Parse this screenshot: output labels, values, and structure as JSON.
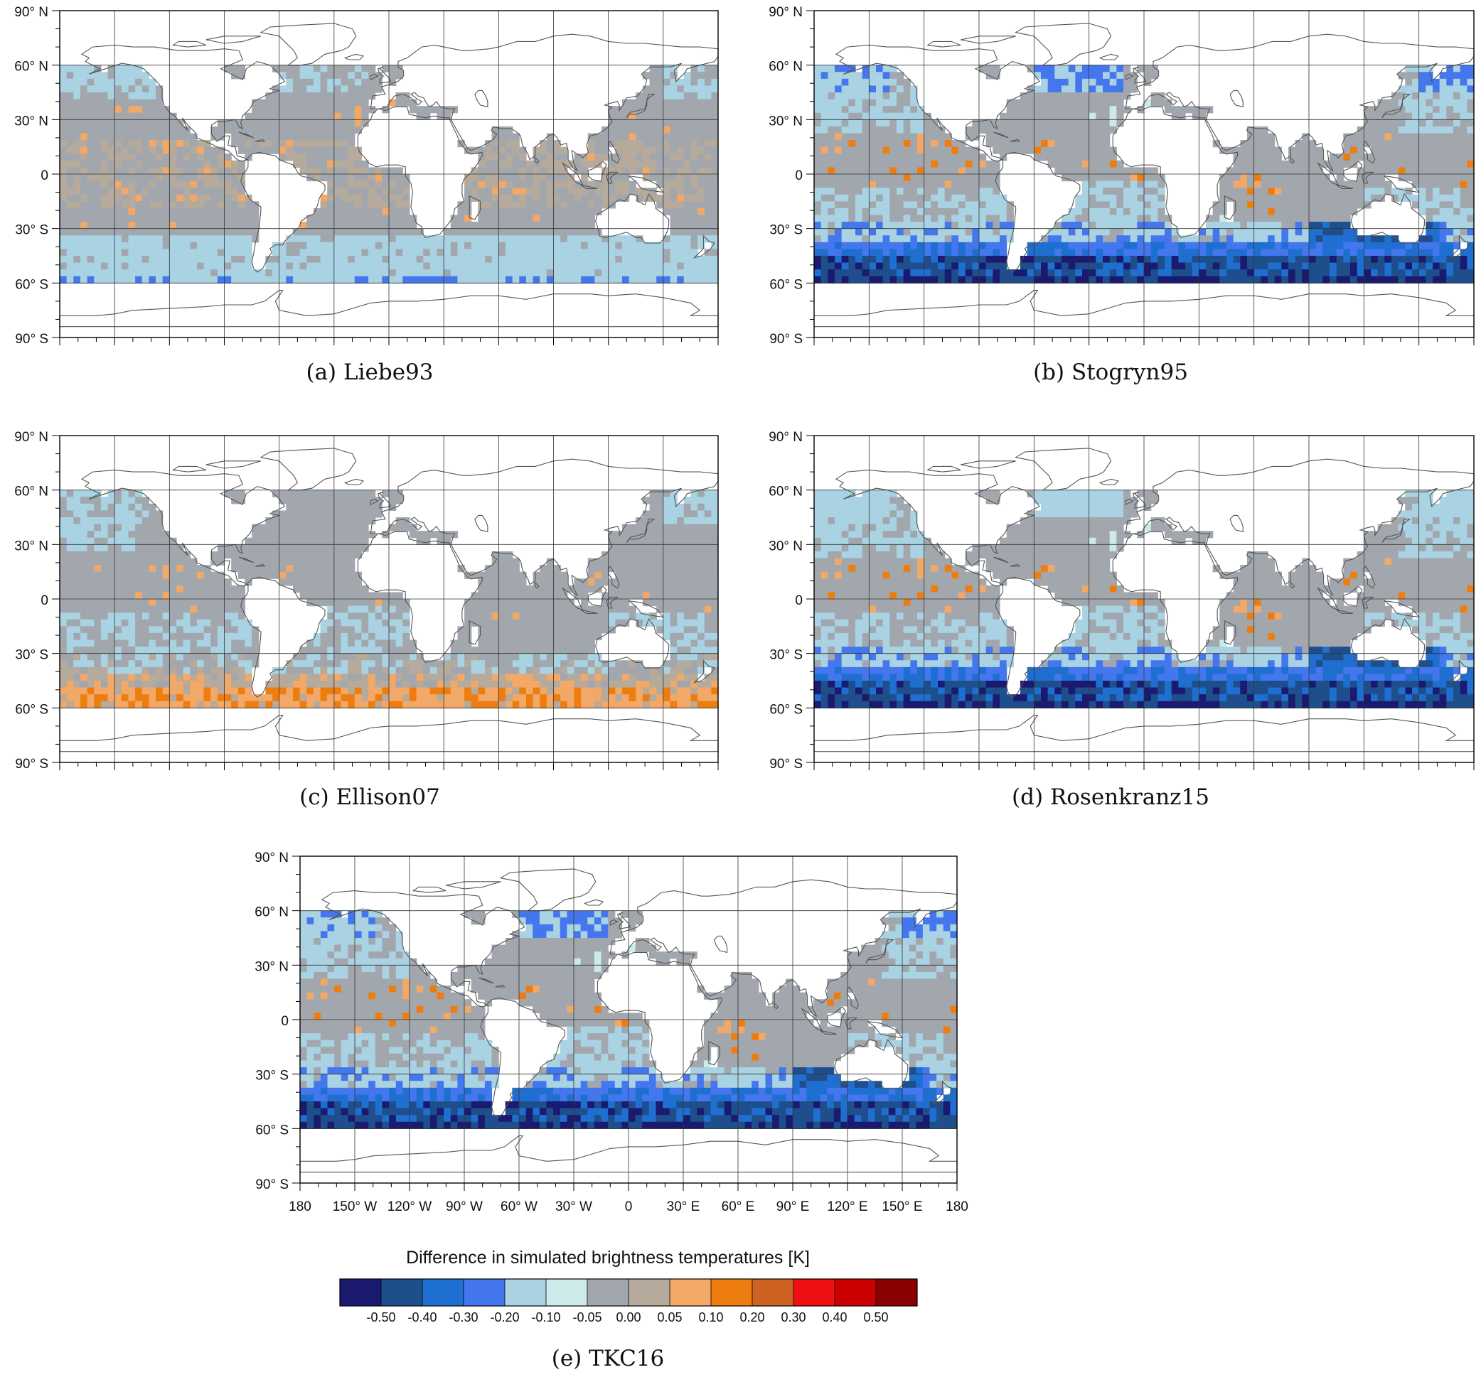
{
  "figure": {
    "lat_labels": [
      "90° N",
      "60° N",
      "30° N",
      "0",
      "30° S",
      "60° S",
      "90° S"
    ],
    "lon_labels": [
      "180",
      "150° W",
      "120° W",
      "90° W",
      "60° W",
      "30° W",
      "0",
      "30° E",
      "60° E",
      "90° E",
      "120° E",
      "150° E",
      "180"
    ],
    "colors": {
      "land": "#ffffff",
      "frame": "#000000",
      "grid": "#333333",
      "coastline": "#555555"
    },
    "icons": [
      "world-map"
    ]
  },
  "panels": [
    {
      "id": "a",
      "caption": "(a) Liebe93",
      "pattern": "liebe"
    },
    {
      "id": "b",
      "caption": "(b) Stogryn95",
      "pattern": "stogryn"
    },
    {
      "id": "c",
      "caption": "(c) Ellison07",
      "pattern": "ellison"
    },
    {
      "id": "d",
      "caption": "(d) Rosenkranz15",
      "pattern": "rosenkranz"
    },
    {
      "id": "e",
      "caption": "(e) TKC16",
      "pattern": "tkc"
    }
  ],
  "colorbar": {
    "title": "Difference in simulated brightness temperatures [K]",
    "levels": [
      "-0.50",
      "-0.40",
      "-0.30",
      "-0.20",
      "-0.10",
      "-0.05",
      "0.00",
      "0.05",
      "0.10",
      "0.20",
      "0.30",
      "0.40",
      "0.50"
    ],
    "colors": [
      "#1a1a6e",
      "#1e4f8c",
      "#1f6fd0",
      "#4477ee",
      "#a9d2e3",
      "#cdeaea",
      "#a2a7ae",
      "#b5aa9b",
      "#f2a867",
      "#ee7d10",
      "#cd6222",
      "#ee1010",
      "#cc0000",
      "#8b0000"
    ]
  },
  "chart_data": {
    "type": "heatmap",
    "title": "",
    "xlabel": "",
    "ylabel": "",
    "xlim": [
      -180,
      180
    ],
    "ylim": [
      -90,
      90
    ],
    "data_extent_lat": [
      -60,
      60
    ],
    "colorbar_label": "Difference in simulated brightness temperatures [K]",
    "series": [
      {
        "name": "(a) Liebe93",
        "dominant_bins": [
          "-0.05 to 0.00",
          "0.00 to 0.05",
          "-0.10 to -0.05"
        ],
        "summary": "mostly -0.05 to 0.05; -0.10 to -0.05 south of 30° S and in North Pacific/Atlantic; isolated -0.30 to -0.20 near 60° S"
      },
      {
        "name": "(b) Stogryn95",
        "dominant_bins": [
          "-0.05 to 0.00",
          "-0.10 to -0.05",
          "-0.30 to -0.20",
          "< -0.50"
        ],
        "summary": "negative differences increasing southward; -0.40 to < -0.50 between 45° S and 60° S; scattered 0.05 to 0.20 in tropics"
      },
      {
        "name": "(c) Ellison07",
        "dominant_bins": [
          "-0.05 to 0.00",
          "-0.10 to -0.05",
          "0.05 to 0.10",
          "0.10 to 0.20"
        ],
        "summary": "mostly -0.05 to 0.00; positive 0.05 to 0.20 band between 45° S and 60° S"
      },
      {
        "name": "(d) Rosenkranz15",
        "dominant_bins": [
          "-0.05 to 0.00",
          "-0.10 to -0.05",
          "-0.30 to -0.20",
          "< -0.50"
        ],
        "summary": "similar to Stogryn95; strongest negatives near 55° S to 60° S"
      },
      {
        "name": "(e) TKC16",
        "dominant_bins": [
          "-0.05 to 0.00",
          "-0.10 to -0.05",
          "-0.40 to -0.30",
          "< -0.50"
        ],
        "summary": "strong negative differences in Southern Ocean and North Pacific high latitudes; scattered 0.05 to 0.30 in tropics"
      }
    ]
  }
}
